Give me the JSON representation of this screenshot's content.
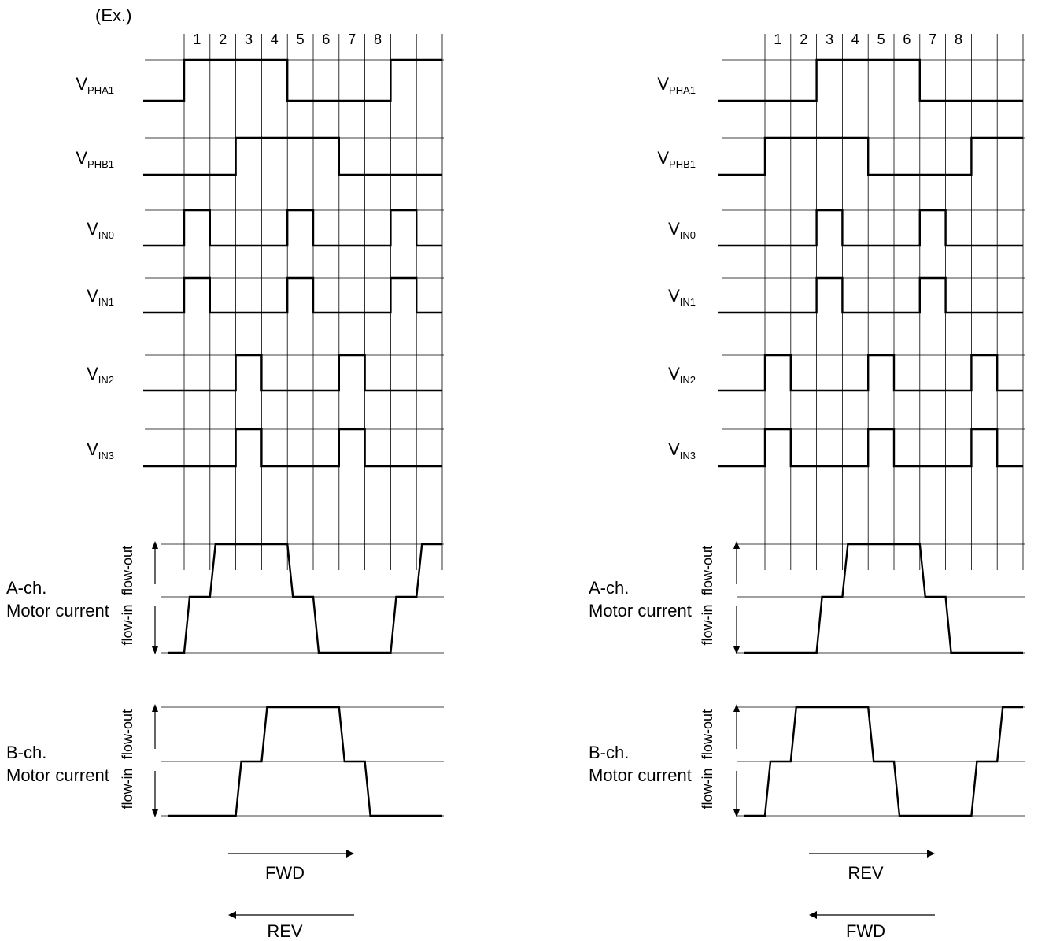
{
  "example_label": "(Ex.)",
  "column_labels": [
    "1",
    "2",
    "3",
    "4",
    "5",
    "6",
    "7",
    "8"
  ],
  "digital_signals": [
    {
      "main": "V",
      "sub": "PHA1"
    },
    {
      "main": "V",
      "sub": "PHB1"
    },
    {
      "main": "V",
      "sub": "IN0"
    },
    {
      "main": "V",
      "sub": "IN1"
    },
    {
      "main": "V",
      "sub": "IN2"
    },
    {
      "main": "V",
      "sub": "IN3"
    }
  ],
  "current_channels": [
    {
      "line1": "A-ch.",
      "line2": "Motor current"
    },
    {
      "line1": "B-ch.",
      "line2": "Motor current"
    }
  ],
  "flow_out_label": "flow-out",
  "flow_in_label": "flow-in",
  "panels": [
    {
      "id": "left",
      "digital": [
        [
          0,
          1,
          1,
          1,
          1,
          0,
          0,
          0,
          0,
          1,
          1
        ],
        [
          0,
          0,
          0,
          1,
          1,
          1,
          1,
          0,
          0,
          0,
          0
        ],
        [
          0,
          1,
          0,
          0,
          0,
          1,
          0,
          0,
          0,
          1,
          0
        ],
        [
          0,
          1,
          0,
          0,
          0,
          1,
          0,
          0,
          0,
          1,
          0
        ],
        [
          0,
          0,
          0,
          1,
          0,
          0,
          0,
          1,
          0,
          0,
          0
        ],
        [
          0,
          0,
          0,
          1,
          0,
          0,
          0,
          1,
          0,
          0,
          0
        ]
      ],
      "analog": [
        [
          -1,
          0,
          1,
          1,
          1,
          0,
          -1,
          -1,
          -1,
          0,
          1
        ],
        [
          -1,
          -1,
          -1,
          0,
          1,
          1,
          1,
          0,
          -1,
          -1,
          -1
        ]
      ],
      "arrows": {
        "right_label": "FWD",
        "left_label": "REV"
      }
    },
    {
      "id": "right",
      "digital": [
        [
          0,
          0,
          0,
          1,
          1,
          1,
          1,
          0,
          0,
          0,
          0
        ],
        [
          0,
          1,
          1,
          1,
          1,
          0,
          0,
          0,
          0,
          1,
          1
        ],
        [
          0,
          0,
          0,
          1,
          0,
          0,
          0,
          1,
          0,
          0,
          0
        ],
        [
          0,
          0,
          0,
          1,
          0,
          0,
          0,
          1,
          0,
          0,
          0
        ],
        [
          0,
          1,
          0,
          0,
          0,
          1,
          0,
          0,
          0,
          1,
          0
        ],
        [
          0,
          1,
          0,
          0,
          0,
          1,
          0,
          0,
          0,
          1,
          0
        ]
      ],
      "analog": [
        [
          -1,
          -1,
          -1,
          0,
          1,
          1,
          1,
          0,
          -1,
          -1,
          -1
        ],
        [
          -1,
          0,
          1,
          1,
          1,
          0,
          -1,
          -1,
          -1,
          0,
          1
        ]
      ],
      "arrows": {
        "right_label": "REV",
        "left_label": "FWD"
      }
    }
  ]
}
